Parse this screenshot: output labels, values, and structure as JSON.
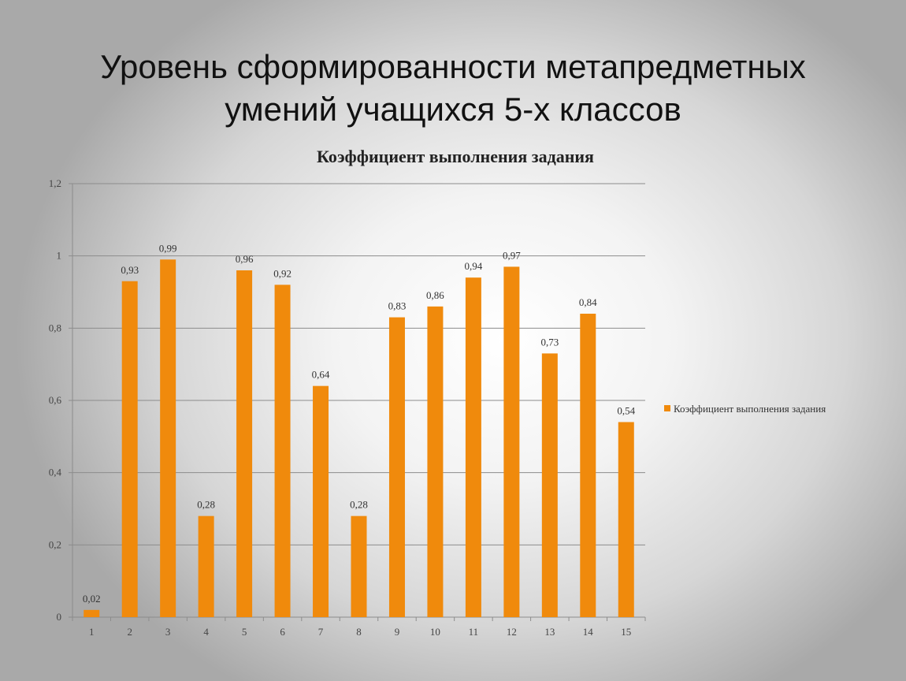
{
  "slide": {
    "title_line1": "Уровень сформированности метапредметных",
    "title_line2": "умений учащихся 5-х классов"
  },
  "chart_data": {
    "type": "bar",
    "title": "Коэффициент выполнения задания",
    "categories": [
      "1",
      "2",
      "3",
      "4",
      "5",
      "6",
      "7",
      "8",
      "9",
      "10",
      "11",
      "12",
      "13",
      "14",
      "15"
    ],
    "series": [
      {
        "name": "Коэффициент выполнения задания",
        "values": [
          0.02,
          0.93,
          0.99,
          0.28,
          0.96,
          0.92,
          0.64,
          0.28,
          0.83,
          0.86,
          0.94,
          0.97,
          0.73,
          0.84,
          0.54
        ],
        "labels": [
          "0,02",
          "0,93",
          "0,99",
          "0,28",
          "0,96",
          "0,92",
          "0,64",
          "0,28",
          "0,83",
          "0,86",
          "0,94",
          "0,97",
          "0,73",
          "0,84",
          "0,54"
        ],
        "color": "#F08A0C"
      }
    ],
    "ylim": [
      0,
      1.2
    ],
    "yticks": [
      0,
      0.2,
      0.4,
      0.6,
      0.8,
      1,
      1.2
    ],
    "ytick_labels": [
      "0",
      "0,2",
      "0,4",
      "0,6",
      "0,8",
      "1",
      "1,2"
    ],
    "xlabel": "",
    "ylabel": "",
    "grid": true,
    "legend_position": "right"
  }
}
